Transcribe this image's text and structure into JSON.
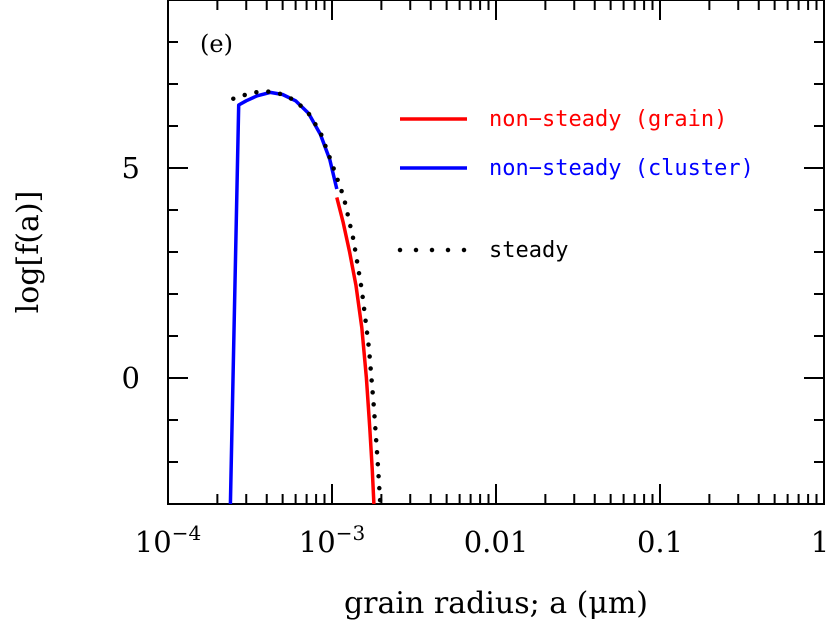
{
  "chart_data": {
    "type": "line",
    "panel_label": "(e)",
    "xlabel": "grain radius; a (μm)",
    "ylabel": "log[f(a)]",
    "x_scale": "log",
    "xlim": [
      0.0001,
      1
    ],
    "ylim": [
      -3,
      9
    ],
    "x_ticks": [
      {
        "value": 0.0001,
        "base": "10",
        "exp": "−4"
      },
      {
        "value": 0.001,
        "base": "10",
        "exp": "−3"
      },
      {
        "value": 0.01,
        "base": "0.01",
        "exp": ""
      },
      {
        "value": 0.1,
        "base": "0.1",
        "exp": ""
      },
      {
        "value": 1,
        "base": "1",
        "exp": ""
      }
    ],
    "y_ticks": [
      {
        "value": 0,
        "label": "0"
      },
      {
        "value": 5,
        "label": "5"
      }
    ],
    "y_minor_step": 1,
    "grid": false,
    "legend_position": "upper-right",
    "series": [
      {
        "name": "non−steady (grain)",
        "color": "#ff0000",
        "style": "solid",
        "points": [
          [
            0.00107,
            4.3
          ],
          [
            0.00117,
            3.7
          ],
          [
            0.00128,
            3.0
          ],
          [
            0.0014,
            2.2
          ],
          [
            0.00152,
            1.2
          ],
          [
            0.00162,
            0.0
          ],
          [
            0.0017,
            -1.2
          ],
          [
            0.00176,
            -2.2
          ],
          [
            0.0018,
            -3.0
          ]
        ]
      },
      {
        "name": "non−steady (cluster)",
        "color": "#0000ff",
        "style": "solid",
        "points": [
          [
            0.00024,
            -3.0
          ],
          [
            0.00027,
            6.5
          ],
          [
            0.0003,
            6.6
          ],
          [
            0.00035,
            6.72
          ],
          [
            0.00042,
            6.8
          ],
          [
            0.0005,
            6.75
          ],
          [
            0.0006,
            6.6
          ],
          [
            0.00072,
            6.3
          ],
          [
            0.00085,
            5.8
          ],
          [
            0.00097,
            5.2
          ],
          [
            0.00107,
            4.5
          ]
        ]
      },
      {
        "name": "steady",
        "color": "#000000",
        "style": "dotted",
        "points": [
          [
            0.00025,
            6.65
          ],
          [
            0.0003,
            6.75
          ],
          [
            0.00036,
            6.82
          ],
          [
            0.00042,
            6.82
          ],
          [
            0.0005,
            6.75
          ],
          [
            0.0006,
            6.6
          ],
          [
            0.00072,
            6.3
          ],
          [
            0.00085,
            5.85
          ],
          [
            0.001,
            5.1
          ],
          [
            0.00118,
            4.3
          ],
          [
            0.00135,
            3.3
          ],
          [
            0.00152,
            2.1
          ],
          [
            0.00168,
            0.7
          ],
          [
            0.0018,
            -0.7
          ],
          [
            0.0019,
            -2.0
          ],
          [
            0.00197,
            -3.0
          ]
        ]
      }
    ]
  }
}
